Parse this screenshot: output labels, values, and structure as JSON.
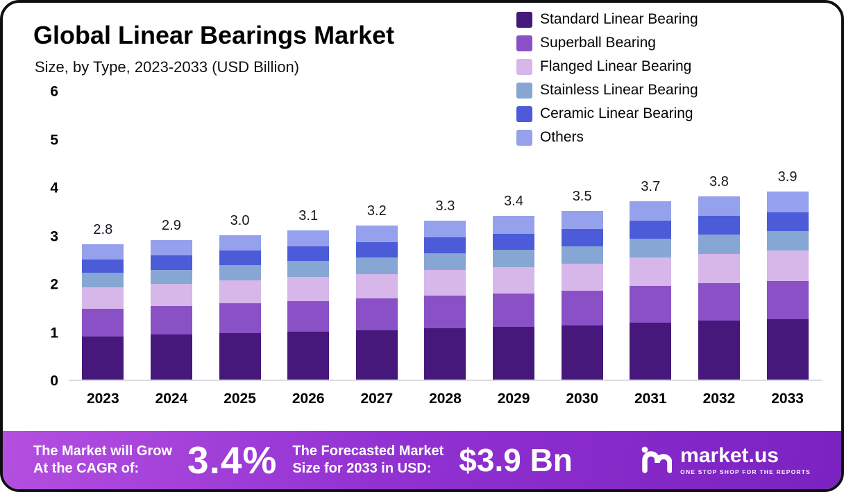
{
  "header": {
    "title": "Global Linear Bearings Market",
    "subtitle": "Size, by Type, 2023-2033 (USD Billion)"
  },
  "chart_data": {
    "type": "bar",
    "variant": "stacked",
    "title": "Global Linear Bearings Market",
    "subtitle": "Size, by Type, 2023-2033 (USD Billion)",
    "xlabel": "",
    "ylabel": "USD Billion",
    "ylim": [
      0,
      6
    ],
    "yticks": [
      0,
      1,
      2,
      3,
      4,
      5,
      6
    ],
    "grid": false,
    "legend_position": "top-right",
    "categories": [
      "2023",
      "2024",
      "2025",
      "2026",
      "2027",
      "2028",
      "2029",
      "2030",
      "2031",
      "2032",
      "2033"
    ],
    "totals": [
      "2.8",
      "2.9",
      "3.0",
      "3.1",
      "3.2",
      "3.3",
      "3.4",
      "3.5",
      "3.7",
      "3.8",
      "3.9"
    ],
    "series": [
      {
        "name": "Standard Linear Bearing",
        "color": "#47187b",
        "values": [
          0.9,
          0.93,
          0.96,
          0.99,
          1.02,
          1.06,
          1.09,
          1.12,
          1.18,
          1.22,
          1.25
        ]
      },
      {
        "name": "Superball Bearing",
        "color": "#8951c5",
        "values": [
          0.57,
          0.59,
          0.62,
          0.64,
          0.66,
          0.68,
          0.7,
          0.72,
          0.76,
          0.78,
          0.8
        ]
      },
      {
        "name": "Flanged Linear Bearing",
        "color": "#d7b6e9",
        "values": [
          0.45,
          0.46,
          0.48,
          0.5,
          0.51,
          0.53,
          0.54,
          0.56,
          0.59,
          0.61,
          0.62
        ]
      },
      {
        "name": "Stainless Linear Bearing",
        "color": "#86a7d3",
        "values": [
          0.29,
          0.3,
          0.32,
          0.33,
          0.34,
          0.35,
          0.36,
          0.37,
          0.39,
          0.4,
          0.41
        ]
      },
      {
        "name": "Ceramic Linear Bearing",
        "color": "#4c5bd8",
        "values": [
          0.28,
          0.29,
          0.3,
          0.31,
          0.32,
          0.33,
          0.34,
          0.35,
          0.37,
          0.38,
          0.39
        ]
      },
      {
        "name": "Others",
        "color": "#95a1ec",
        "values": [
          0.31,
          0.33,
          0.32,
          0.33,
          0.35,
          0.35,
          0.37,
          0.38,
          0.41,
          0.41,
          0.43
        ]
      }
    ]
  },
  "footer": {
    "cagr_label_1": "The Market will Grow",
    "cagr_label_2": "At the CAGR of:",
    "cagr_value": "3.4%",
    "forecast_label_1": "The Forecasted Market",
    "forecast_label_2": "Size for 2033 in USD:",
    "forecast_value": "$3.9 Bn",
    "brand_name": "market.us",
    "brand_tagline": "ONE STOP SHOP FOR THE REPORTS"
  }
}
